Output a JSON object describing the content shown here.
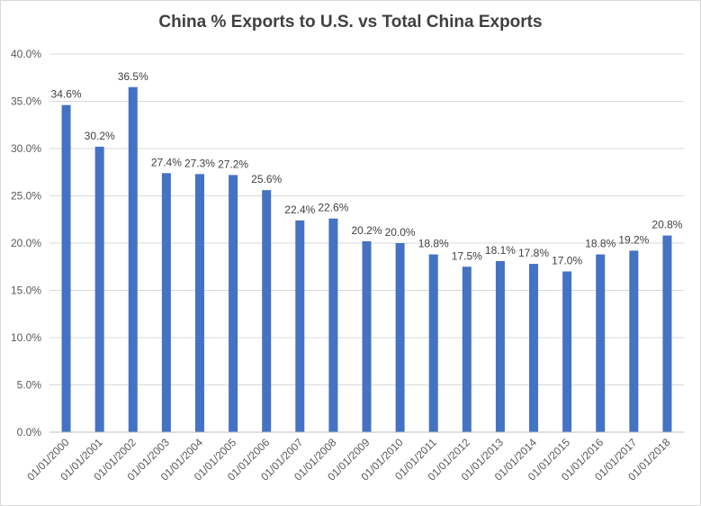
{
  "chart_data": {
    "type": "bar",
    "title": "China % Exports to U.S. vs Total China Exports",
    "xlabel": "",
    "ylabel": "",
    "categories": [
      "01/01/2000",
      "01/01/2001",
      "01/01/2002",
      "01/01/2003",
      "01/01/2004",
      "01/01/2005",
      "01/01/2006",
      "01/01/2007",
      "01/01/2008",
      "01/01/2009",
      "01/01/2010",
      "01/01/2011",
      "01/01/2012",
      "01/01/2013",
      "01/01/2014",
      "01/01/2015",
      "01/01/2016",
      "01/01/2017",
      "01/01/2018"
    ],
    "values": [
      34.6,
      30.2,
      36.5,
      27.4,
      27.3,
      27.2,
      25.6,
      22.4,
      22.6,
      20.2,
      20.0,
      18.8,
      17.5,
      18.1,
      17.8,
      17.0,
      18.8,
      19.2,
      20.8
    ],
    "data_labels": [
      "34.6%",
      "30.2%",
      "36.5%",
      "27.4%",
      "27.3%",
      "27.2%",
      "25.6%",
      "22.4%",
      "22.6%",
      "20.2%",
      "20.0%",
      "18.8%",
      "17.5%",
      "18.1%",
      "17.8%",
      "17.0%",
      "18.8%",
      "19.2%",
      "20.8%"
    ],
    "ylim": [
      0,
      40
    ],
    "yticks": [
      0,
      5,
      10,
      15,
      20,
      25,
      30,
      35,
      40
    ],
    "ytick_labels": [
      "0.0%",
      "5.0%",
      "10.0%",
      "15.0%",
      "20.0%",
      "25.0%",
      "30.0%",
      "35.0%",
      "40.0%"
    ],
    "grid": true,
    "legend": "none",
    "colors": {
      "bar": "#4472c4",
      "grid": "#d9d9d9",
      "axis": "#bfbfbf",
      "text": "#595959"
    }
  }
}
